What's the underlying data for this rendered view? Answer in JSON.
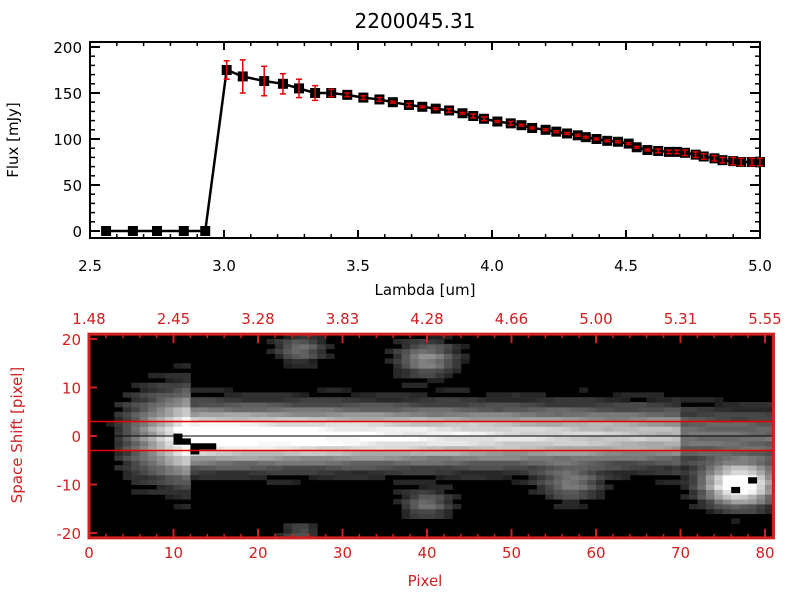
{
  "chart_data": [
    {
      "type": "line",
      "title": "2200045.31",
      "xlabel": "Lambda [um]",
      "ylabel": "Flux [mJy]",
      "xlim": [
        2.5,
        5.0
      ],
      "ylim": [
        0,
        200
      ],
      "xticks": [
        "2.5",
        "3.0",
        "3.5",
        "4.0",
        "4.5",
        "5.0"
      ],
      "xtick_values": [
        2.5,
        3.0,
        3.5,
        4.0,
        4.5,
        5.0
      ],
      "yticks": [
        "0",
        "50",
        "100",
        "150",
        "200"
      ],
      "ytick_values": [
        0,
        50,
        100,
        150,
        200
      ],
      "series": [
        {
          "name": "flux",
          "color": "#000000",
          "error_color": "#e00000",
          "x": [
            2.56,
            2.66,
            2.75,
            2.85,
            2.93,
            3.01,
            3.07,
            3.15,
            3.22,
            3.28,
            3.34,
            3.4,
            3.46,
            3.52,
            3.58,
            3.63,
            3.69,
            3.74,
            3.79,
            3.84,
            3.89,
            3.93,
            3.97,
            4.02,
            4.07,
            4.11,
            4.15,
            4.2,
            4.24,
            4.28,
            4.32,
            4.35,
            4.39,
            4.43,
            4.47,
            4.51,
            4.54,
            4.58,
            4.62,
            4.66,
            4.69,
            4.72,
            4.76,
            4.79,
            4.83,
            4.86,
            4.9,
            4.93,
            4.97,
            5.0
          ],
          "y": [
            0,
            0,
            0,
            0,
            0,
            175,
            168,
            163,
            160,
            155,
            150,
            150,
            148,
            145,
            143,
            140,
            137,
            135,
            133,
            131,
            128,
            125,
            122,
            119,
            117,
            115,
            112,
            110,
            108,
            106,
            104,
            102,
            100,
            98,
            97,
            95,
            91,
            88,
            87,
            86,
            86,
            85,
            83,
            81,
            79,
            77,
            76,
            75,
            75,
            75
          ],
          "err": [
            0,
            0,
            0,
            0,
            0,
            10,
            18,
            16,
            11,
            10,
            8,
            4,
            2,
            2,
            2,
            1,
            2,
            1,
            1,
            2,
            1,
            2,
            2,
            1,
            2,
            1,
            1,
            1,
            1,
            1,
            1,
            1,
            1,
            1,
            1,
            1,
            1,
            1,
            2,
            2,
            2,
            3,
            3,
            3,
            3,
            3,
            4,
            4,
            4,
            4
          ]
        }
      ]
    },
    {
      "type": "heatmap",
      "xlabel": "Pixel",
      "ylabel": "Space Shift [pixel]",
      "xlim": [
        0,
        81
      ],
      "ylim": [
        -21,
        21
      ],
      "xticks": [
        "0",
        "10",
        "20",
        "30",
        "40",
        "50",
        "60",
        "70",
        "80"
      ],
      "xtick_values": [
        0,
        10,
        20,
        30,
        40,
        50,
        60,
        70,
        80
      ],
      "top_xticks": [
        "1.48",
        "2.45",
        "3.28",
        "3.83",
        "4.28",
        "4.66",
        "5.00",
        "5.31",
        "5.55"
      ],
      "yticks": [
        "20",
        "10",
        "0",
        "-10",
        "-20"
      ],
      "ytick_values": [
        20,
        10,
        0,
        -10,
        -20
      ],
      "axis_color": "#d02020",
      "extraction_window": [
        -3,
        3
      ],
      "center_line": 0,
      "trace": {
        "peak_x": 12,
        "peak_intensity": 1.0,
        "end_intensity": 0.55,
        "width": 4
      },
      "blobs": [
        {
          "x": 77,
          "y": -10,
          "intensity": 1.0,
          "width": 3
        },
        {
          "x": 25,
          "y": 18,
          "intensity": 0.35,
          "width": 2
        },
        {
          "x": 40,
          "y": 16,
          "intensity": 0.45,
          "width": 2.5
        },
        {
          "x": 40,
          "y": -14,
          "intensity": 0.35,
          "width": 2
        },
        {
          "x": 57,
          "y": -10,
          "intensity": 0.35,
          "width": 2.5
        },
        {
          "x": 25,
          "y": -20,
          "intensity": 0.25,
          "width": 1.5
        }
      ],
      "masked_pixels": [
        [
          10,
          0
        ],
        [
          10,
          -1
        ],
        [
          11,
          -1
        ],
        [
          12,
          -2
        ],
        [
          13,
          -2
        ],
        [
          14,
          -2
        ],
        [
          12,
          -3
        ],
        [
          76,
          -11
        ],
        [
          78,
          -9
        ]
      ]
    }
  ]
}
